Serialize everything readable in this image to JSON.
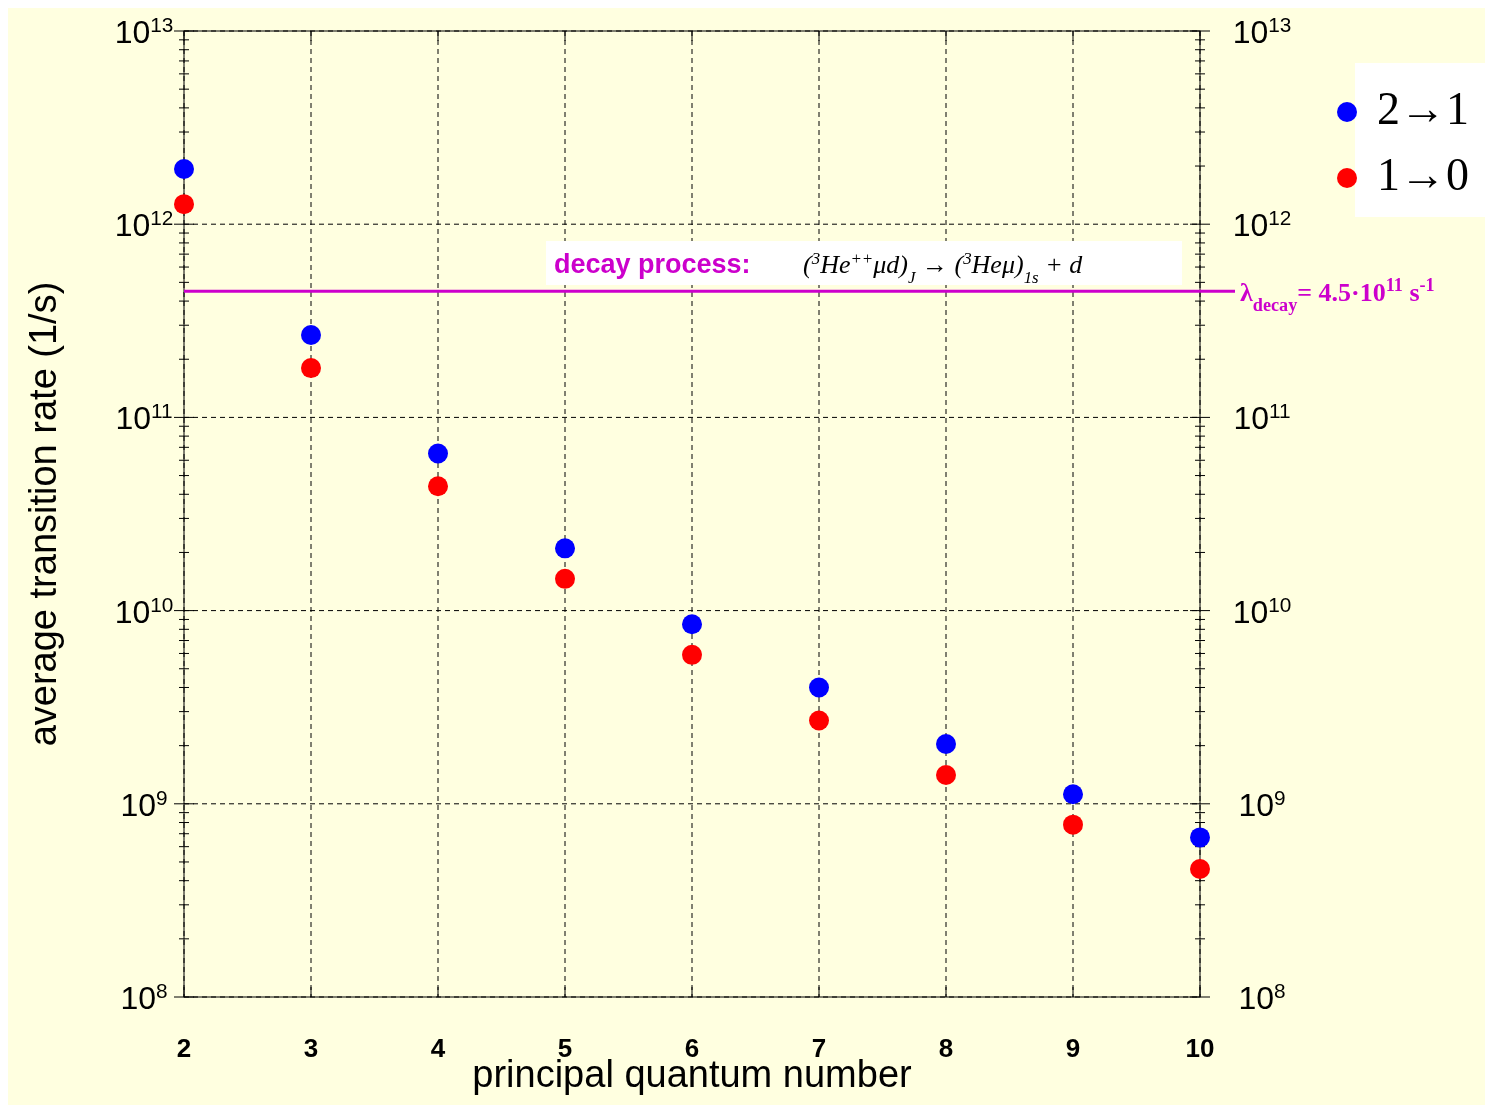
{
  "chart_data": {
    "type": "scatter",
    "xlabel": "principal quantum number",
    "ylabel": "average transition rate (1/s)",
    "x": [
      2,
      3,
      4,
      5,
      6,
      7,
      8,
      9,
      10
    ],
    "series": [
      {
        "name": "2→1",
        "color": "#0000ff",
        "values": [
          1930000000000.0,
          267000000000.0,
          65000000000.0,
          21000000000.0,
          8500000000.0,
          4000000000.0,
          2040000000.0,
          1120000000.0,
          670000000.0
        ]
      },
      {
        "name": "1→0",
        "color": "#ff0000",
        "values": [
          1270000000000.0,
          180000000000.0,
          44000000000.0,
          14600000000.0,
          5900000000.0,
          2700000000.0,
          1410000000.0,
          780000000.0,
          460000000.0
        ]
      }
    ],
    "log": "y",
    "xlim": [
      2,
      10
    ],
    "xticks": [
      2,
      3,
      4,
      5,
      6,
      7,
      8,
      9,
      10
    ],
    "ylim": [
      100000000.0,
      10000000000000.0
    ],
    "yticks": [
      {
        "value": 100000000.0,
        "label": "10$^{8}$"
      },
      {
        "value": 1000000000.0,
        "label": "10$^{9}$"
      },
      {
        "value": 10000000000.0,
        "label": "10$^{10}$"
      },
      {
        "value": 100000000000.0,
        "label": "10$^{11}$"
      },
      {
        "value": 1000000000000.0,
        "label": "10$^{12}$"
      },
      {
        "value": 10000000000000.0,
        "label": "10$^{13}$"
      }
    ],
    "ref_lines": [
      {
        "axis": "y",
        "value": 450000000000.0,
        "color": "#cc00cc",
        "line_style": "solid"
      }
    ],
    "annotations": [
      "decay process:",
      "($^{3}$He$^{++}$μd)$_{J}$ → ($^{3}$Heμ)$_{1s}$ + d",
      "λ$_{decay}$= 4.5·10$^{11}$ s$^{-1}$"
    ],
    "grid": true,
    "legend": "top right",
    "marker": "circle"
  }
}
